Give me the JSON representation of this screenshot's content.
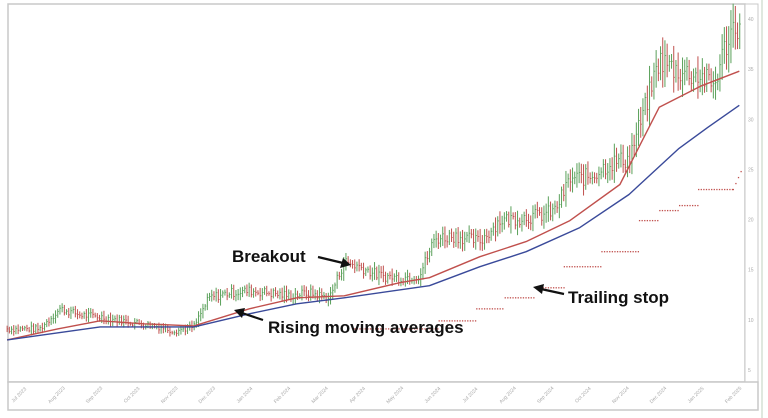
{
  "chart_data": {
    "type": "ohlc-line",
    "title": "",
    "xlabel": "",
    "ylabel": "",
    "x_tick_labels": [
      "Jul 2023",
      "Aug 2023",
      "Sep 2023",
      "Oct 2023",
      "Nov 2023",
      "Dec 2023",
      "Jan 2024",
      "Feb 2024",
      "Mar 2024",
      "Apr 2024",
      "May 2024",
      "Jun 2024",
      "Jul 2024",
      "Aug 2024",
      "Sep 2024",
      "Oct 2024",
      "Nov 2024",
      "Dec 2024",
      "Jan 2025",
      "Feb 2025"
    ],
    "y_ticks": [
      5,
      10,
      15,
      20,
      25,
      30,
      35,
      40
    ],
    "ylim": [
      3.8,
      41.5
    ],
    "y_axis_side": "right",
    "grid": false,
    "price": {
      "up_color": "#5aa05a",
      "down_color": "#c0504d",
      "points": [
        [
          "2023-06-21",
          9.1
        ],
        [
          "2023-07-17",
          9.1
        ],
        [
          "2023-08-03",
          11.1
        ],
        [
          "2023-08-19",
          10.5
        ],
        [
          "2023-09-05",
          10.3
        ],
        [
          "2023-09-29",
          9.8
        ],
        [
          "2023-10-23",
          9.3
        ],
        [
          "2023-11-04",
          8.9
        ],
        [
          "2023-11-20",
          9.3
        ],
        [
          "2023-12-02",
          12.2
        ],
        [
          "2023-12-18",
          12.7
        ],
        [
          "2024-01-04",
          12.9
        ],
        [
          "2024-01-20",
          12.7
        ],
        [
          "2024-02-06",
          12.4
        ],
        [
          "2024-02-22",
          12.7
        ],
        [
          "2024-03-08",
          12.2
        ],
        [
          "2024-03-20",
          15.8
        ],
        [
          "2024-04-02",
          15.3
        ],
        [
          "2024-04-18",
          14.4
        ],
        [
          "2024-05-04",
          14.2
        ],
        [
          "2024-05-20",
          14.4
        ],
        [
          "2024-06-02",
          18.1
        ],
        [
          "2024-06-18",
          18.4
        ],
        [
          "2024-07-08",
          17.8
        ],
        [
          "2024-07-24",
          19.9
        ],
        [
          "2024-08-10",
          20.2
        ],
        [
          "2024-08-26",
          20.4
        ],
        [
          "2024-09-08",
          20.9
        ],
        [
          "2024-09-20",
          24.0
        ],
        [
          "2024-10-06",
          24.3
        ],
        [
          "2024-10-22",
          25.6
        ],
        [
          "2024-11-07",
          26.1
        ],
        [
          "2024-11-19",
          30.7
        ],
        [
          "2024-12-01",
          35.9
        ],
        [
          "2024-12-17",
          34.8
        ],
        [
          "2025-01-04",
          34.3
        ],
        [
          "2025-01-15",
          33.3
        ],
        [
          "2025-01-23",
          36.9
        ],
        [
          "2025-02-01",
          39.5
        ],
        [
          "2025-02-07",
          39.2
        ]
      ]
    },
    "series": [
      {
        "color": "#c0504d",
        "style": "line",
        "points": [
          [
            "2023-06-21",
            8.0
          ],
          [
            "2023-08-01",
            9.1
          ],
          [
            "2023-09-05",
            9.9
          ],
          [
            "2023-10-10",
            9.6
          ],
          [
            "2023-11-20",
            9.4
          ],
          [
            "2024-01-04",
            11.1
          ],
          [
            "2024-02-12",
            12.2
          ],
          [
            "2024-03-20",
            12.4
          ],
          [
            "2024-05-04",
            13.7
          ],
          [
            "2024-05-28",
            14.2
          ],
          [
            "2024-07-08",
            16.3
          ],
          [
            "2024-08-15",
            17.8
          ],
          [
            "2024-09-20",
            19.9
          ],
          [
            "2024-10-30",
            23.5
          ],
          [
            "2024-12-01",
            31.2
          ],
          [
            "2025-01-04",
            33.3
          ],
          [
            "2025-02-05",
            34.8
          ]
        ]
      },
      {
        "color": "#3a4a9a",
        "style": "line",
        "points": [
          [
            "2023-06-21",
            8.0
          ],
          [
            "2023-09-05",
            9.3
          ],
          [
            "2023-11-20",
            9.3
          ],
          [
            "2024-01-04",
            10.6
          ],
          [
            "2024-02-12",
            11.6
          ],
          [
            "2024-03-20",
            12.2
          ],
          [
            "2024-05-28",
            13.4
          ],
          [
            "2024-07-08",
            15.3
          ],
          [
            "2024-08-15",
            16.8
          ],
          [
            "2024-09-28",
            19.2
          ],
          [
            "2024-11-07",
            22.5
          ],
          [
            "2024-12-17",
            27.1
          ],
          [
            "2025-01-10",
            29.2
          ],
          [
            "2025-02-05",
            31.4
          ]
        ]
      },
      {
        "color": "#c0504d",
        "style": "dotted-step",
        "points": [
          [
            "2024-03-28",
            9.1
          ],
          [
            "2024-05-28",
            9.1
          ],
          [
            "2024-06-05",
            9.9
          ],
          [
            "2024-07-05",
            11.1
          ],
          [
            "2024-07-28",
            12.2
          ],
          [
            "2024-08-22",
            13.2
          ],
          [
            "2024-09-15",
            15.3
          ],
          [
            "2024-10-15",
            16.8
          ],
          [
            "2024-11-15",
            19.9
          ],
          [
            "2024-12-01",
            20.9
          ],
          [
            "2024-12-17",
            21.4
          ],
          [
            "2025-01-02",
            23.0
          ],
          [
            "2025-01-30",
            23.0
          ],
          [
            "2025-02-07",
            25.1
          ]
        ]
      }
    ],
    "annotations": [
      {
        "text": "Breakout",
        "target": "price breakout, Mar 2024"
      },
      {
        "text": "Rising moving averages",
        "target": "moving averages, Dec 2023"
      },
      {
        "text": "Trailing stop",
        "target": "trailing stop, Aug 2024"
      }
    ]
  }
}
